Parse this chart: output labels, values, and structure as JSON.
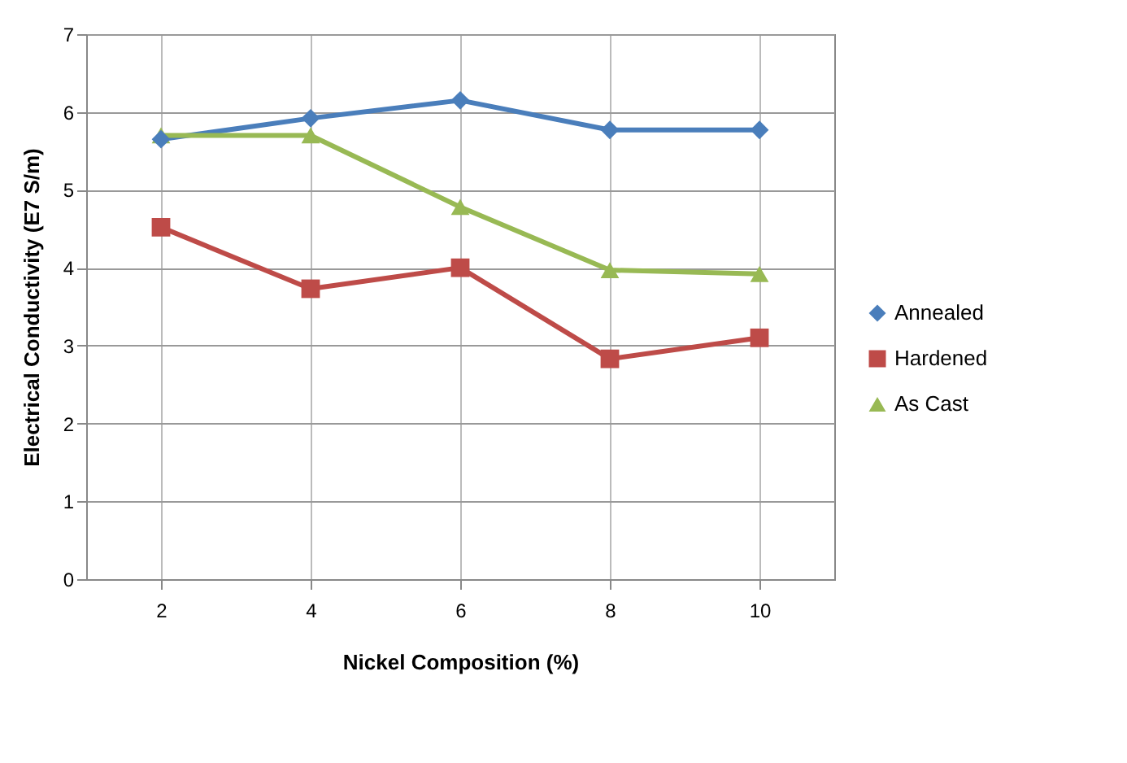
{
  "chart_data": {
    "type": "line",
    "xlabel": "Nickel Composition (%)",
    "ylabel": "Electrical Conductivity (E7 S/m)",
    "categories": [
      "2",
      "4",
      "6",
      "8",
      "10"
    ],
    "ylim": [
      0,
      7
    ],
    "yticks": [
      0,
      1,
      2,
      3,
      4,
      5,
      6,
      7
    ],
    "grid": true,
    "legend": "right",
    "series": [
      {
        "name": "Annealed",
        "color": "#4a7ebb",
        "marker": "diamond",
        "values": [
          5.65,
          5.92,
          6.15,
          5.77,
          5.77
        ]
      },
      {
        "name": "Hardened",
        "color": "#be4b48",
        "marker": "square",
        "values": [
          4.52,
          3.73,
          4.0,
          2.83,
          3.1
        ]
      },
      {
        "name": "As Cast",
        "color": "#98b954",
        "marker": "triangle",
        "values": [
          5.7,
          5.7,
          4.78,
          3.97,
          3.92
        ]
      }
    ]
  }
}
